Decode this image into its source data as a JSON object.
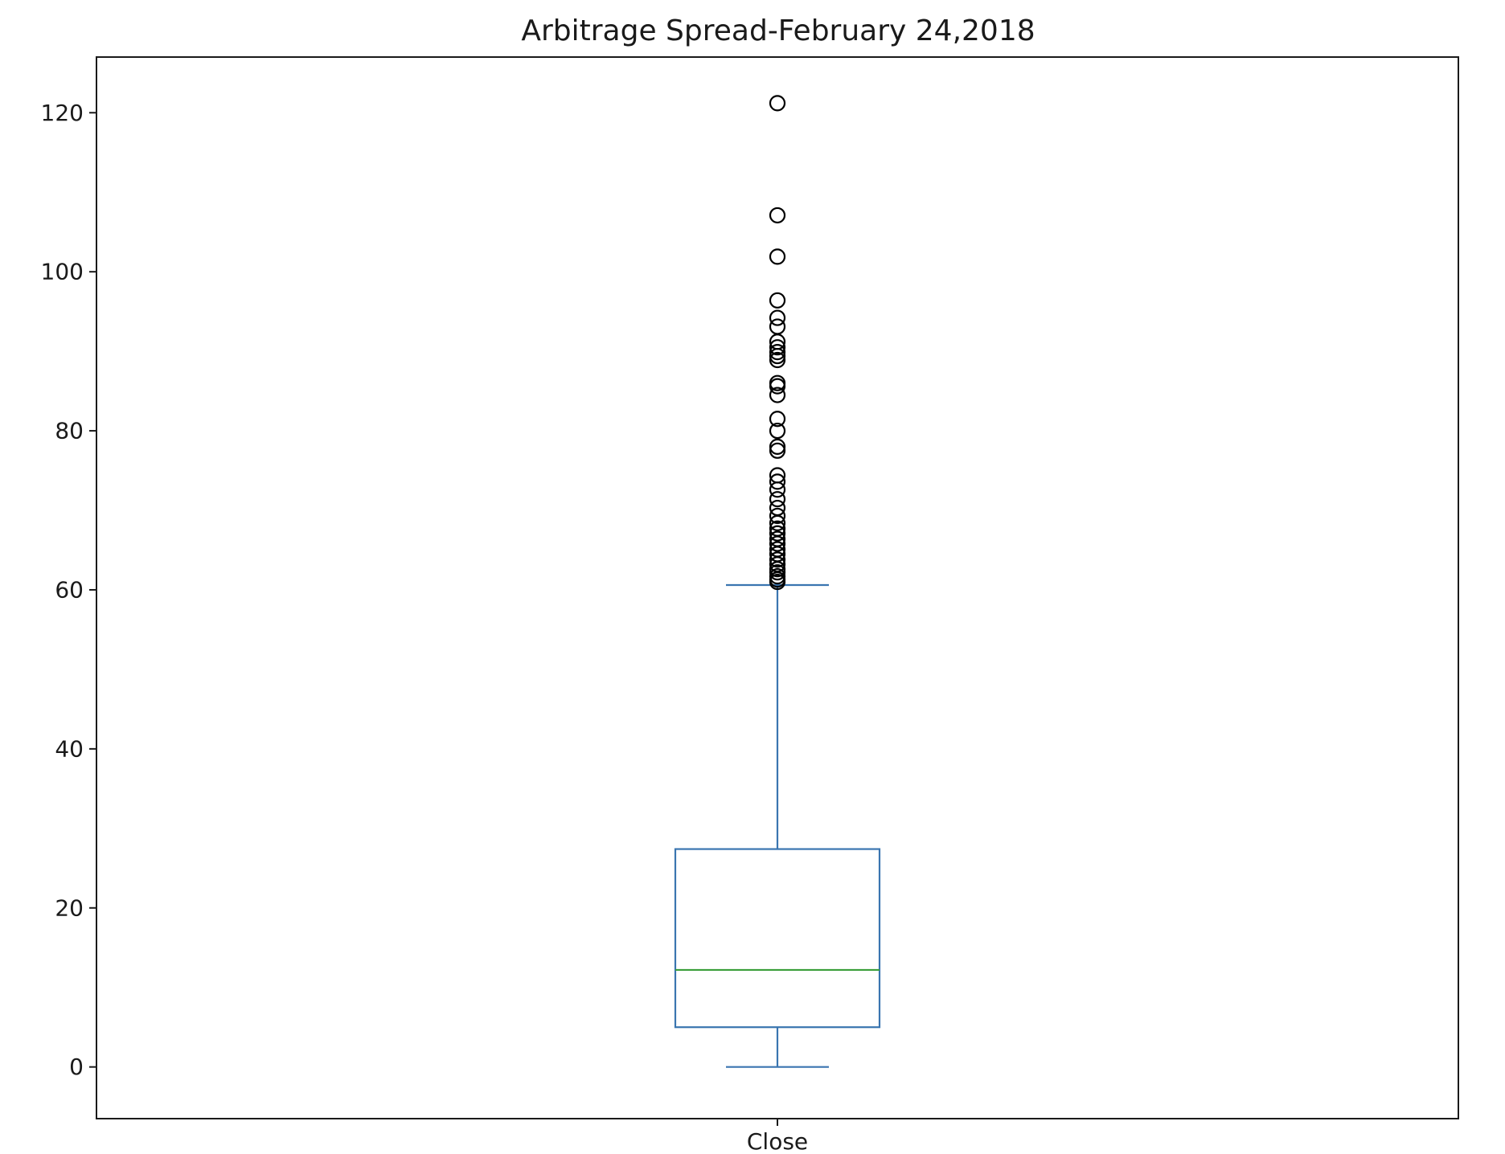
{
  "chart_data": {
    "type": "box",
    "title": "Arbitrage Spread-February 24,2018",
    "xlabel": "",
    "ylabel": "",
    "categories": [
      "Close"
    ],
    "ylim": [
      -6.5,
      127
    ],
    "yticks": [
      0,
      20,
      40,
      60,
      80,
      100,
      120
    ],
    "grid": false,
    "box": {
      "whisker_low": 0,
      "q1": 5,
      "median": 12.2,
      "q3": 27.4,
      "whisker_high": 60.6,
      "outliers": [
        61,
        61.3,
        61.7,
        62.2,
        62.6,
        63.2,
        63.8,
        64.5,
        65.1,
        65.8,
        66.4,
        67.1,
        67.7,
        68.4,
        69.3,
        70.3,
        71.4,
        72.6,
        73.6,
        74.4,
        77.5,
        78,
        80,
        81.5,
        84.5,
        85.6,
        86,
        88.9,
        89.4,
        89.9,
        90.5,
        91.2,
        93.1,
        94.2,
        96.4,
        101.9,
        107.1,
        121.2
      ]
    },
    "colors": {
      "box": "#3a75b0",
      "median": "#3a9e3a",
      "outlier": "#000000",
      "axes": "#1a1a1a"
    }
  }
}
